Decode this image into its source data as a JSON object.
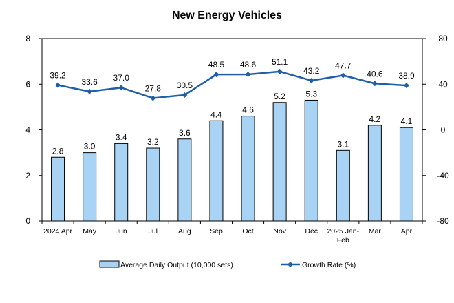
{
  "chart_data": {
    "type": "bar",
    "title": "New Energy Vehicles",
    "categories": [
      "2024 Apr",
      "May",
      "Jun",
      "Jul",
      "Aug",
      "Sep",
      "Oct",
      "Nov",
      "Dec",
      "2025 Jan-Feb",
      "Mar",
      "Apr"
    ],
    "series": [
      {
        "name": "Average Daily Output (10,000 sets)",
        "type": "bar",
        "axis": "left",
        "color": "#a9d3f5",
        "values": [
          2.8,
          3.0,
          3.4,
          3.2,
          3.6,
          4.4,
          4.6,
          5.2,
          5.3,
          3.1,
          4.2,
          4.1
        ],
        "labels": [
          "2.8",
          "3.0",
          "3.4",
          "3.2",
          "3.6",
          "4.4",
          "4.6",
          "5.2",
          "5.3",
          "3.1",
          "4.2",
          "4.1"
        ]
      },
      {
        "name": "Growth Rate (%)",
        "type": "line",
        "axis": "right",
        "color": "#1f5fa8",
        "values": [
          39.2,
          33.6,
          37.0,
          27.8,
          30.5,
          48.5,
          48.6,
          51.1,
          43.2,
          47.7,
          40.6,
          38.9
        ],
        "labels": [
          "39.2",
          "33.6",
          "37.0",
          "27.8",
          "30.5",
          "48.5",
          "48.6",
          "51.1",
          "43.2",
          "47.7",
          "40.6",
          "38.9"
        ]
      }
    ],
    "y_left": {
      "min": 0,
      "max": 8,
      "ticks": [
        "0",
        "2",
        "4",
        "6",
        "8"
      ]
    },
    "y_right": {
      "min": -80,
      "max": 80,
      "ticks": [
        "-80",
        "-40",
        "0",
        "40",
        "80"
      ]
    },
    "grid": false,
    "legend_position": "bottom"
  }
}
